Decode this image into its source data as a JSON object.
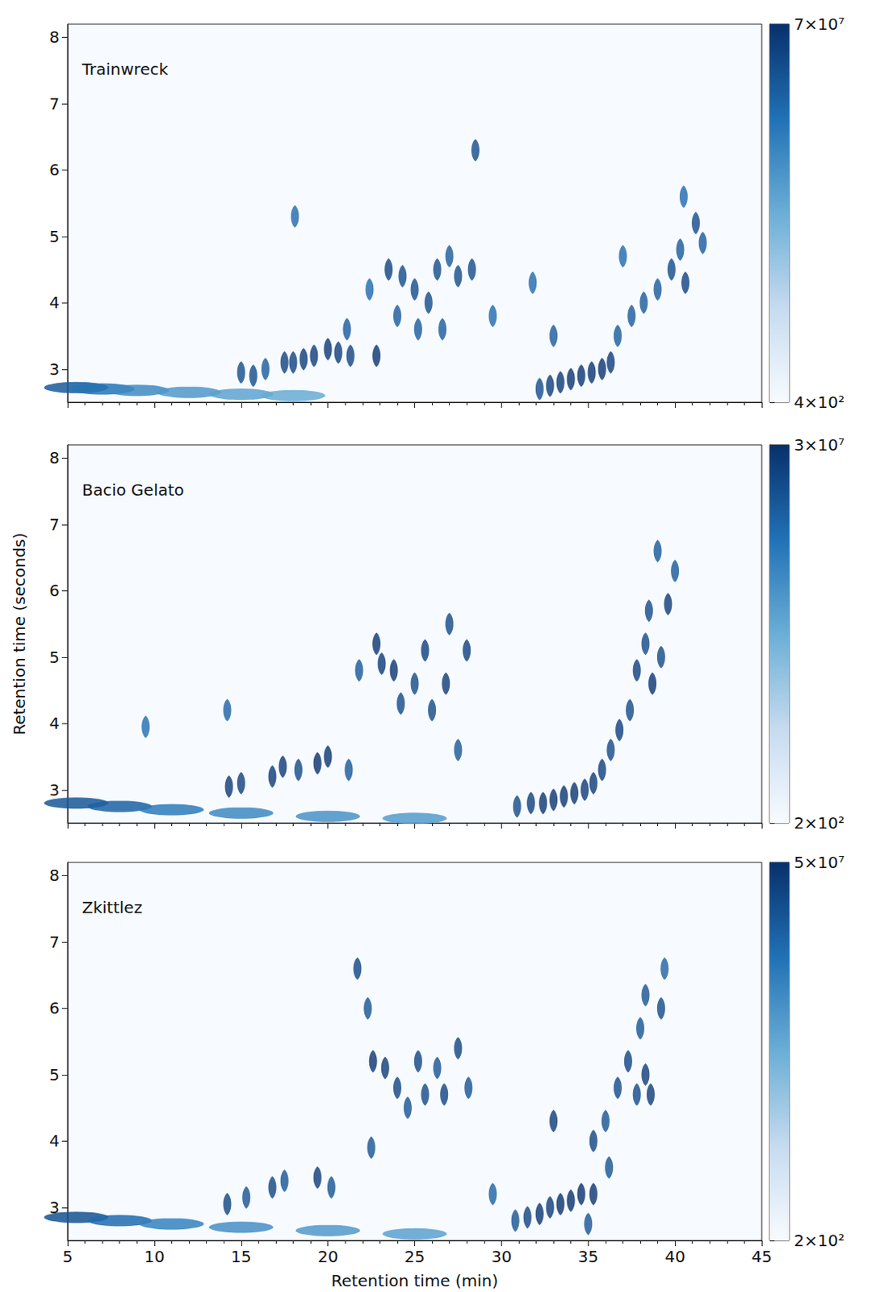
{
  "chart_data": [
    {
      "type": "heatmap",
      "title": "Trainwreck",
      "tick_labels": "y",
      "xlim": [
        5,
        45
      ],
      "xticks": [
        5,
        10,
        15,
        20,
        25,
        30,
        35,
        40,
        45
      ],
      "ylim": [
        2.5,
        8.2
      ],
      "yticks": [
        3,
        4,
        5,
        6,
        7,
        8
      ],
      "colorbar": {
        "range": [
          400,
          70000000
        ],
        "ticks": [
          {
            "value": 400,
            "label": "4×10²"
          },
          {
            "value": 70000000,
            "label": "7×10⁷"
          }
        ]
      },
      "bleed": [
        [
          5.5,
          2.72,
          10000000
        ],
        [
          7,
          2.7,
          3000000
        ],
        [
          9,
          2.68,
          1000000
        ],
        [
          12,
          2.65,
          500000
        ],
        [
          15,
          2.62,
          300000
        ],
        [
          18,
          2.6,
          200000
        ]
      ],
      "peaks": [
        [
          15,
          2.95,
          20000000
        ],
        [
          15.7,
          2.9,
          20000000
        ],
        [
          16.4,
          3.0,
          10000000
        ],
        [
          17.5,
          3.1,
          30000000
        ],
        [
          18,
          3.1,
          30000000
        ],
        [
          18.6,
          3.15,
          40000000
        ],
        [
          19.2,
          3.2,
          40000000
        ],
        [
          20,
          3.3,
          50000000
        ],
        [
          20.6,
          3.25,
          40000000
        ],
        [
          21.3,
          3.2,
          30000000
        ],
        [
          22.8,
          3.2,
          60000000
        ],
        [
          22.4,
          4.2,
          5000000
        ],
        [
          23.5,
          4.5,
          30000000
        ],
        [
          24.3,
          4.4,
          20000000
        ],
        [
          25,
          4.2,
          20000000
        ],
        [
          25.8,
          4.0,
          20000000
        ],
        [
          26.3,
          4.5,
          20000000
        ],
        [
          27,
          4.7,
          10000000
        ],
        [
          27.5,
          4.4,
          20000000
        ],
        [
          28.3,
          4.5,
          20000000
        ],
        [
          28.5,
          6.3,
          20000000
        ],
        [
          26.6,
          3.6,
          10000000
        ],
        [
          25.2,
          3.6,
          10000000
        ],
        [
          24,
          3.8,
          10000000
        ],
        [
          21.1,
          3.6,
          10000000
        ],
        [
          18.1,
          5.3,
          5000000
        ],
        [
          31.8,
          4.3,
          5000000
        ],
        [
          33,
          3.5,
          10000000
        ],
        [
          32.2,
          2.7,
          20000000
        ],
        [
          32.8,
          2.75,
          40000000
        ],
        [
          33.4,
          2.8,
          50000000
        ],
        [
          34,
          2.85,
          60000000
        ],
        [
          34.6,
          2.9,
          60000000
        ],
        [
          35.2,
          2.95,
          60000000
        ],
        [
          35.8,
          3.0,
          60000000
        ],
        [
          36.3,
          3.1,
          40000000
        ],
        [
          36.7,
          3.5,
          10000000
        ],
        [
          37.5,
          3.8,
          10000000
        ],
        [
          38.2,
          4.0,
          10000000
        ],
        [
          39,
          4.2,
          10000000
        ],
        [
          39.8,
          4.5,
          20000000
        ],
        [
          40.3,
          4.8,
          10000000
        ],
        [
          40.6,
          4.3,
          30000000
        ],
        [
          41.2,
          5.2,
          20000000
        ],
        [
          41.6,
          4.9,
          10000000
        ],
        [
          40.5,
          5.6,
          5000000
        ],
        [
          37,
          4.7,
          5000000
        ],
        [
          29.5,
          3.8,
          5000000
        ]
      ]
    },
    {
      "type": "heatmap",
      "title": "Bacio Gelato",
      "tick_labels": "y",
      "ylabel": "Retention time (seconds)",
      "xlim": [
        5,
        45
      ],
      "xticks": [
        5,
        10,
        15,
        20,
        25,
        30,
        35,
        40,
        45
      ],
      "ylim": [
        2.5,
        8.2
      ],
      "yticks": [
        3,
        4,
        5,
        6,
        7,
        8
      ],
      "colorbar": {
        "range": [
          200,
          30000000
        ],
        "ticks": [
          {
            "value": 200,
            "label": "2×10²"
          },
          {
            "value": 30000000,
            "label": "3×10⁷"
          }
        ]
      },
      "bleed": [
        [
          5.5,
          2.8,
          5000000
        ],
        [
          8,
          2.75,
          3000000
        ],
        [
          11,
          2.7,
          1000000
        ],
        [
          15,
          2.65,
          500000
        ],
        [
          20,
          2.6,
          300000
        ],
        [
          25,
          2.57,
          200000
        ]
      ],
      "peaks": [
        [
          9.5,
          3.95,
          2000000
        ],
        [
          14.2,
          4.2,
          3000000
        ],
        [
          14.3,
          3.05,
          20000000
        ],
        [
          15,
          3.1,
          15000000
        ],
        [
          16.8,
          3.2,
          20000000
        ],
        [
          17.4,
          3.35,
          20000000
        ],
        [
          18.3,
          3.3,
          10000000
        ],
        [
          19.4,
          3.4,
          30000000
        ],
        [
          20,
          3.5,
          25000000
        ],
        [
          21.2,
          3.3,
          5000000
        ],
        [
          21.8,
          4.8,
          5000000
        ],
        [
          22.8,
          5.2,
          25000000
        ],
        [
          23.1,
          4.9,
          20000000
        ],
        [
          23.8,
          4.8,
          25000000
        ],
        [
          24.2,
          4.3,
          10000000
        ],
        [
          25,
          4.6,
          10000000
        ],
        [
          25.6,
          5.1,
          15000000
        ],
        [
          26,
          4.2,
          10000000
        ],
        [
          26.8,
          4.6,
          20000000
        ],
        [
          27,
          5.5,
          10000000
        ],
        [
          28,
          5.1,
          15000000
        ],
        [
          27.5,
          3.6,
          5000000
        ],
        [
          30.9,
          2.75,
          10000000
        ],
        [
          31.7,
          2.8,
          15000000
        ],
        [
          32.4,
          2.8,
          25000000
        ],
        [
          33,
          2.85,
          25000000
        ],
        [
          33.6,
          2.9,
          25000000
        ],
        [
          34.2,
          2.95,
          25000000
        ],
        [
          34.8,
          3.0,
          20000000
        ],
        [
          35.3,
          3.1,
          20000000
        ],
        [
          35.8,
          3.3,
          15000000
        ],
        [
          36.3,
          3.6,
          10000000
        ],
        [
          36.8,
          3.9,
          15000000
        ],
        [
          37.4,
          4.2,
          10000000
        ],
        [
          37.8,
          4.8,
          15000000
        ],
        [
          38.3,
          5.2,
          10000000
        ],
        [
          38.7,
          4.6,
          25000000
        ],
        [
          38.5,
          5.7,
          10000000
        ],
        [
          39.2,
          5.0,
          10000000
        ],
        [
          39.6,
          5.8,
          20000000
        ],
        [
          40,
          6.3,
          5000000
        ],
        [
          39,
          6.6,
          5000000
        ]
      ]
    },
    {
      "type": "heatmap",
      "title": "Zkittlez",
      "xlabel": "Retention time (min)",
      "xlim": [
        5,
        45
      ],
      "xticks": [
        5,
        10,
        15,
        20,
        25,
        30,
        35,
        40,
        45
      ],
      "ylim": [
        2.5,
        8.2
      ],
      "yticks": [
        3,
        4,
        5,
        6,
        7,
        8
      ],
      "colorbar": {
        "range": [
          200,
          50000000
        ],
        "ticks": [
          {
            "value": 200,
            "label": "2×10²"
          },
          {
            "value": 50000000,
            "label": "5×10⁷"
          }
        ]
      },
      "bleed": [
        [
          5.5,
          2.85,
          10000000
        ],
        [
          8,
          2.8,
          3000000
        ],
        [
          11,
          2.75,
          1000000
        ],
        [
          15,
          2.7,
          500000
        ],
        [
          20,
          2.65,
          300000
        ],
        [
          25,
          2.6,
          200000
        ]
      ],
      "peaks": [
        [
          14.2,
          3.05,
          20000000
        ],
        [
          15.3,
          3.15,
          10000000
        ],
        [
          16.8,
          3.3,
          20000000
        ],
        [
          17.5,
          3.4,
          10000000
        ],
        [
          19.4,
          3.45,
          30000000
        ],
        [
          20.2,
          3.3,
          10000000
        ],
        [
          21.7,
          6.6,
          20000000
        ],
        [
          22.3,
          6.0,
          10000000
        ],
        [
          22.6,
          5.2,
          40000000
        ],
        [
          23.3,
          5.1,
          30000000
        ],
        [
          24,
          4.8,
          20000000
        ],
        [
          24.6,
          4.5,
          10000000
        ],
        [
          25.2,
          5.2,
          20000000
        ],
        [
          25.6,
          4.7,
          15000000
        ],
        [
          26.3,
          5.1,
          10000000
        ],
        [
          26.7,
          4.7,
          20000000
        ],
        [
          27.5,
          5.4,
          20000000
        ],
        [
          28.1,
          4.8,
          10000000
        ],
        [
          22.5,
          3.9,
          10000000
        ],
        [
          29.5,
          3.2,
          5000000
        ],
        [
          30.8,
          2.8,
          10000000
        ],
        [
          31.5,
          2.85,
          20000000
        ],
        [
          32.2,
          2.9,
          40000000
        ],
        [
          32.8,
          3.0,
          30000000
        ],
        [
          33.4,
          3.05,
          50000000
        ],
        [
          34,
          3.1,
          50000000
        ],
        [
          34.6,
          3.2,
          50000000
        ],
        [
          35.3,
          3.2,
          40000000
        ],
        [
          35,
          2.75,
          10000000
        ],
        [
          33,
          4.3,
          30000000
        ],
        [
          35.3,
          4.0,
          20000000
        ],
        [
          36,
          4.3,
          10000000
        ],
        [
          36.7,
          4.8,
          15000000
        ],
        [
          37.3,
          5.2,
          20000000
        ],
        [
          37.8,
          4.7,
          15000000
        ],
        [
          38.3,
          5.0,
          30000000
        ],
        [
          38.6,
          4.7,
          30000000
        ],
        [
          38,
          5.7,
          10000000
        ],
        [
          38.3,
          6.2,
          10000000
        ],
        [
          39.2,
          6.0,
          15000000
        ],
        [
          39.4,
          6.6,
          5000000
        ],
        [
          36.2,
          3.6,
          10000000
        ]
      ]
    }
  ]
}
